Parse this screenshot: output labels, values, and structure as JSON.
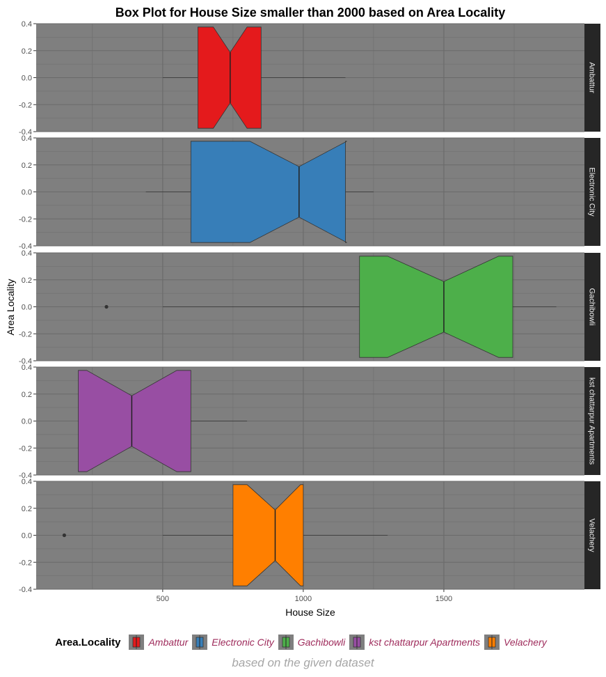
{
  "chart_data": {
    "type": "boxplot",
    "title": "Box Plot for House Size smaller than 2000 based on Area Locality",
    "xlabel": "House Size",
    "ylabel": "Area Locality",
    "x_ticks": [
      500,
      1000,
      1500
    ],
    "xlim": [
      50,
      2000
    ],
    "y_ticks": [
      0.4,
      0.2,
      0.0,
      -0.2,
      -0.4
    ],
    "y_tick_labels": [
      "0.4",
      "0.2",
      "0.0",
      "-0.2",
      "-0.4"
    ],
    "ylim": [
      -0.4,
      0.4
    ],
    "notched": true,
    "legend_title": "Area.Locality",
    "legend_position": "bottom",
    "caption": "based on the given dataset",
    "panel_background": "#7f7f7f",
    "strip_background": "#262626",
    "series": [
      {
        "name": "Ambattur",
        "color": "#E41A1C",
        "whisker_low": 500,
        "q1": 625,
        "notch_low": 680,
        "median": 740,
        "notch_high": 800,
        "q3": 850,
        "whisker_high": 1150,
        "outliers": []
      },
      {
        "name": "Electronic City",
        "color": "#377EB8",
        "whisker_low": 440,
        "q1": 600,
        "notch_low": 810,
        "median": 985,
        "notch_high": 1155,
        "q3": 1150,
        "whisker_high": 1250,
        "outliers": []
      },
      {
        "name": "Gachibowli",
        "color": "#4DAF4A",
        "whisker_low": 500,
        "q1": 1200,
        "notch_low": 1300,
        "median": 1500,
        "notch_high": 1695,
        "q3": 1745,
        "whisker_high": 1900,
        "outliers": [
          300
        ]
      },
      {
        "name": "kst chattarpur Apartments",
        "color": "#984EA3",
        "whisker_low": 200,
        "q1": 200,
        "notch_low": 230,
        "median": 390,
        "notch_high": 550,
        "q3": 600,
        "whisker_high": 800,
        "outliers": []
      },
      {
        "name": "Velachery",
        "color": "#FF7F00",
        "whisker_low": 500,
        "q1": 750,
        "notch_low": 800,
        "median": 900,
        "notch_high": 990,
        "q3": 1000,
        "whisker_high": 1300,
        "outliers": [
          150
        ]
      }
    ]
  }
}
